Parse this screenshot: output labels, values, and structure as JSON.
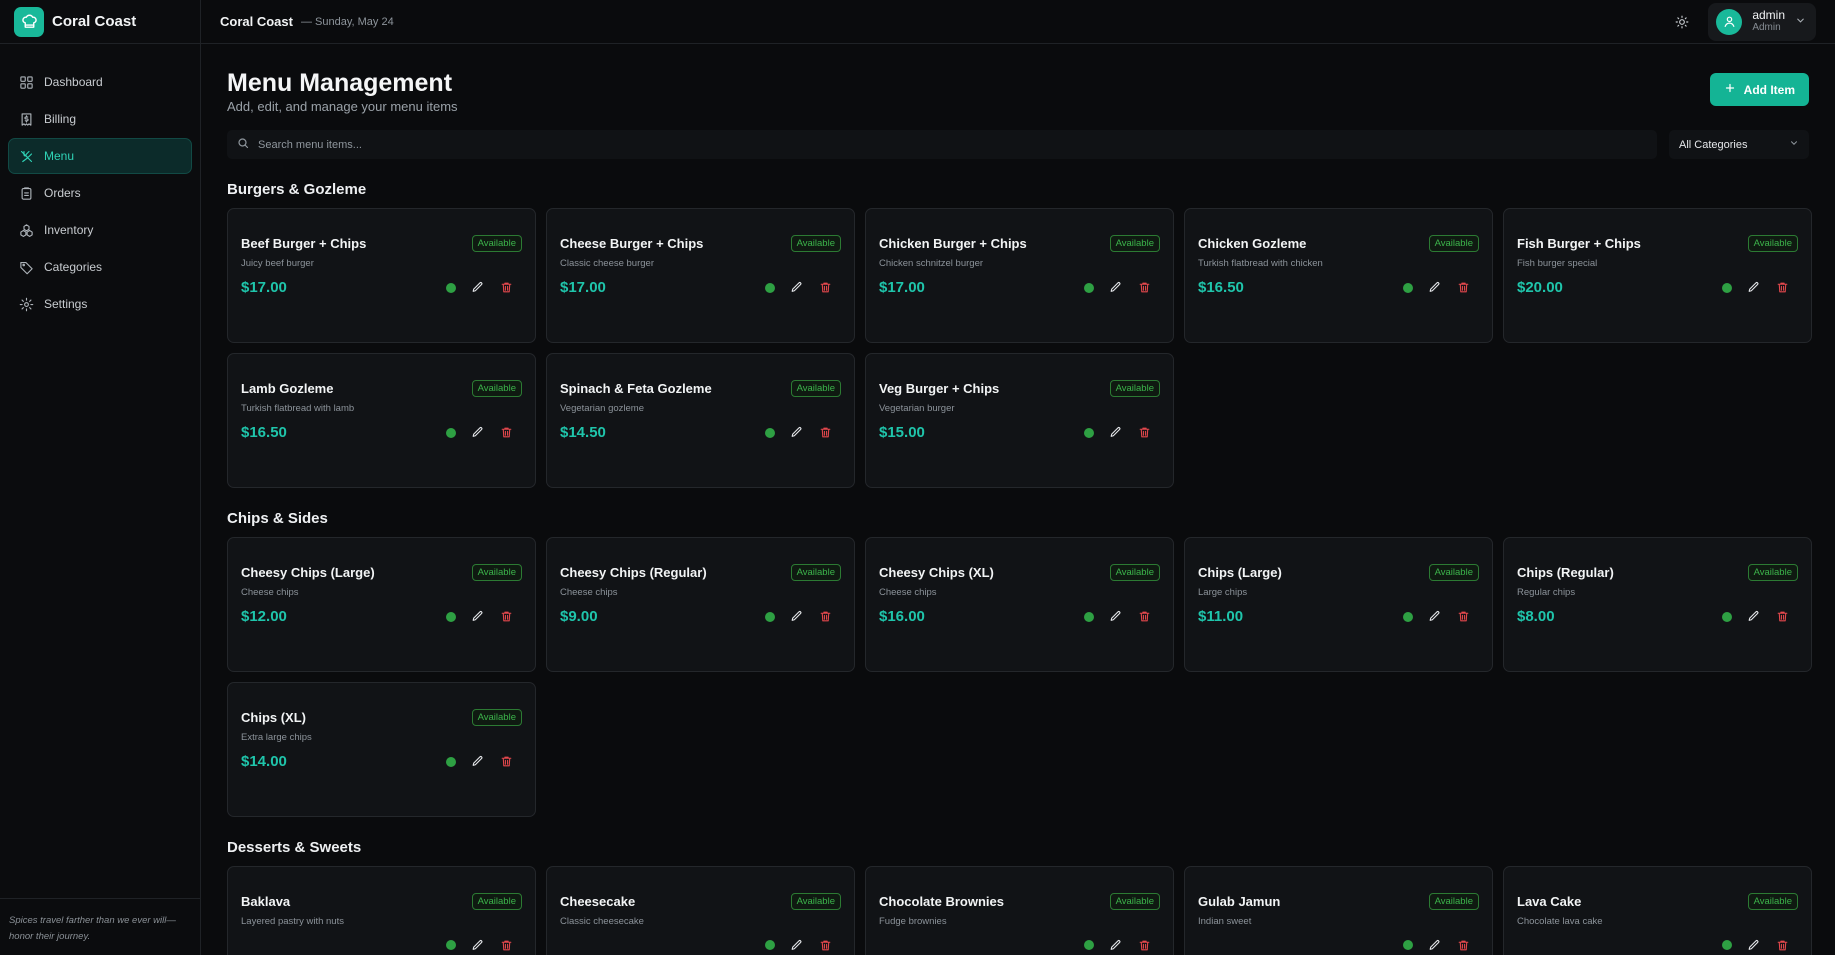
{
  "brand": {
    "name": "Coral Coast"
  },
  "nav": [
    {
      "id": "dashboard",
      "label": "Dashboard",
      "icon": "grid-icon"
    },
    {
      "id": "billing",
      "label": "Billing",
      "icon": "receipt-icon"
    },
    {
      "id": "menu",
      "label": "Menu",
      "icon": "utensils-icon",
      "active": true
    },
    {
      "id": "orders",
      "label": "Orders",
      "icon": "clipboard-icon"
    },
    {
      "id": "inventory",
      "label": "Inventory",
      "icon": "boxes-icon"
    },
    {
      "id": "categories",
      "label": "Categories",
      "icon": "tag-icon"
    },
    {
      "id": "settings",
      "label": "Settings",
      "icon": "gear-icon"
    }
  ],
  "footer_quote": "Spices travel farther than we ever will—honor their journey.",
  "topbar": {
    "title": "Coral Coast",
    "date": "— Sunday, May 24"
  },
  "user": {
    "name": "admin",
    "role": "Admin"
  },
  "page": {
    "title": "Menu Management",
    "subtitle": "Add, edit, and manage your menu items",
    "add_label": "Add Item"
  },
  "search": {
    "placeholder": "Search menu items..."
  },
  "category_filter": {
    "selected": "All Categories"
  },
  "colors": {
    "accent": "#14b495",
    "price": "#1fc5ab",
    "available": "#2ea043",
    "delete": "#e5484d"
  },
  "sections": [
    {
      "title": "Burgers & Gozleme",
      "items": [
        {
          "name": "Beef Burger + Chips",
          "desc": "Juicy beef burger",
          "price": "$17.00",
          "status": "Available"
        },
        {
          "name": "Cheese Burger + Chips",
          "desc": "Classic cheese burger",
          "price": "$17.00",
          "status": "Available"
        },
        {
          "name": "Chicken Burger + Chips",
          "desc": "Chicken schnitzel burger",
          "price": "$17.00",
          "status": "Available"
        },
        {
          "name": "Chicken Gozleme",
          "desc": "Turkish flatbread with chicken",
          "price": "$16.50",
          "status": "Available"
        },
        {
          "name": "Fish Burger + Chips",
          "desc": "Fish burger special",
          "price": "$20.00",
          "status": "Available"
        },
        {
          "name": "Lamb Gozleme",
          "desc": "Turkish flatbread with lamb",
          "price": "$16.50",
          "status": "Available"
        },
        {
          "name": "Spinach & Feta Gozleme",
          "desc": "Vegetarian gozleme",
          "price": "$14.50",
          "status": "Available"
        },
        {
          "name": "Veg Burger + Chips",
          "desc": "Vegetarian burger",
          "price": "$15.00",
          "status": "Available"
        }
      ]
    },
    {
      "title": "Chips & Sides",
      "items": [
        {
          "name": "Cheesy Chips (Large)",
          "desc": "Cheese chips",
          "price": "$12.00",
          "status": "Available"
        },
        {
          "name": "Cheesy Chips (Regular)",
          "desc": "Cheese chips",
          "price": "$9.00",
          "status": "Available"
        },
        {
          "name": "Cheesy Chips (XL)",
          "desc": "Cheese chips",
          "price": "$16.00",
          "status": "Available"
        },
        {
          "name": "Chips (Large)",
          "desc": "Large chips",
          "price": "$11.00",
          "status": "Available"
        },
        {
          "name": "Chips (Regular)",
          "desc": "Regular chips",
          "price": "$8.00",
          "status": "Available"
        },
        {
          "name": "Chips (XL)",
          "desc": "Extra large chips",
          "price": "$14.00",
          "status": "Available"
        }
      ]
    },
    {
      "title": "Desserts & Sweets",
      "items": [
        {
          "name": "Baklava",
          "desc": "Layered pastry with nuts",
          "price": "",
          "status": "Available"
        },
        {
          "name": "Cheesecake",
          "desc": "Classic cheesecake",
          "price": "",
          "status": "Available"
        },
        {
          "name": "Chocolate Brownies",
          "desc": "Fudge brownies",
          "price": "",
          "status": "Available"
        },
        {
          "name": "Gulab Jamun",
          "desc": "Indian sweet",
          "price": "",
          "status": "Available"
        },
        {
          "name": "Lava Cake",
          "desc": "Chocolate lava cake",
          "price": "",
          "status": "Available"
        }
      ]
    }
  ]
}
